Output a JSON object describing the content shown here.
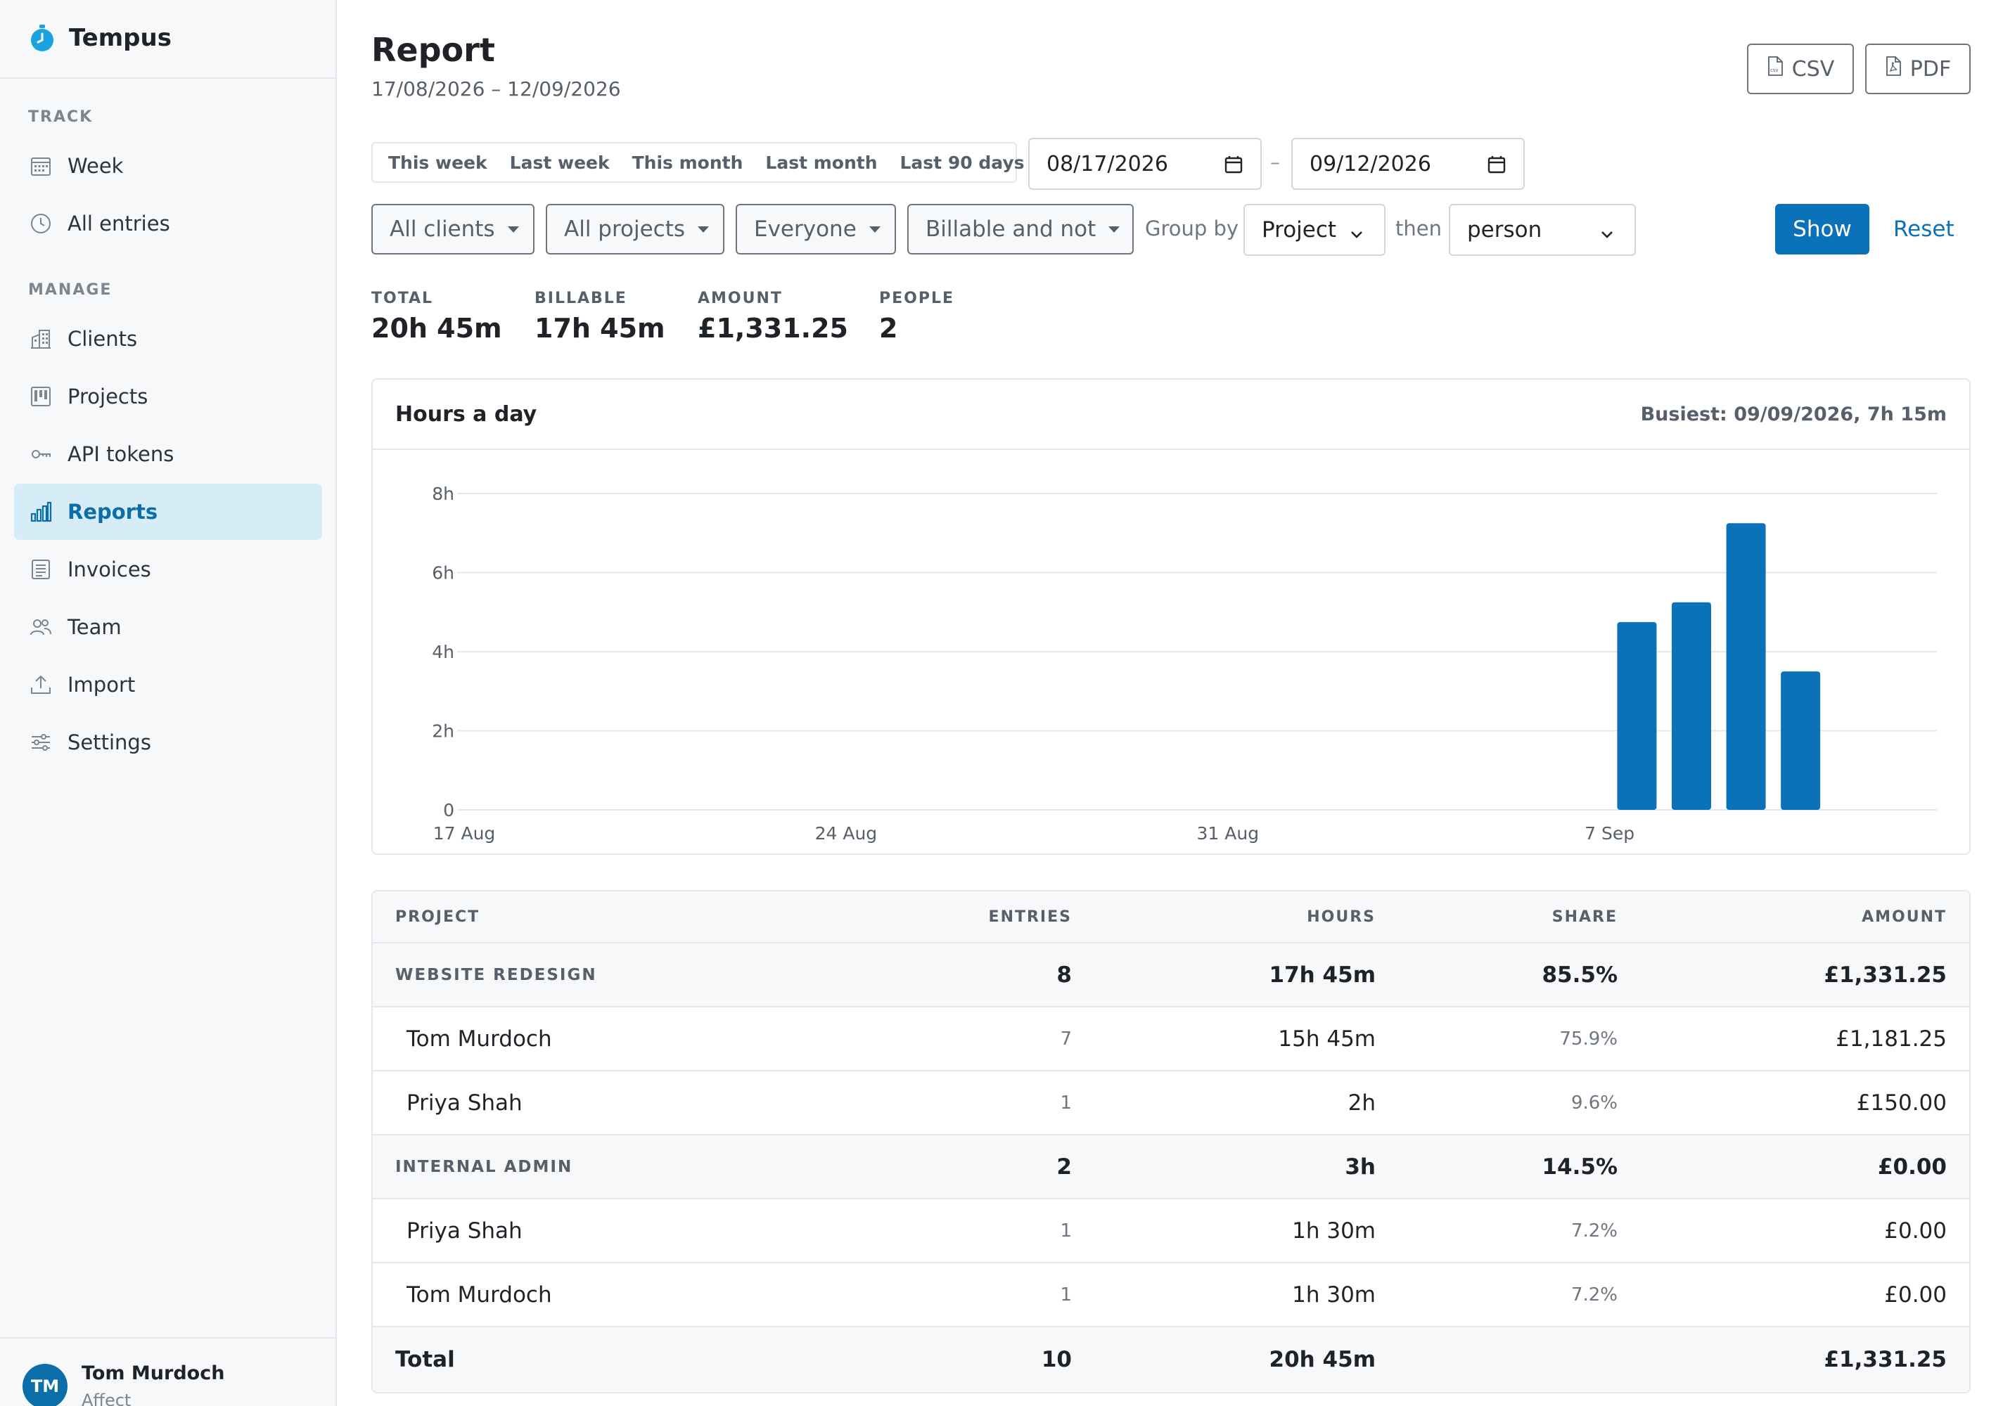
{
  "app": {
    "name": "Tempus"
  },
  "sidebar": {
    "track_heading": "TRACK",
    "manage_heading": "MANAGE",
    "items": [
      {
        "label": "Week",
        "icon": "calendar-week-icon"
      },
      {
        "label": "All entries",
        "icon": "clock-icon"
      },
      {
        "label": "Clients",
        "icon": "building-icon"
      },
      {
        "label": "Projects",
        "icon": "kanban-icon"
      },
      {
        "label": "API tokens",
        "icon": "key-icon"
      },
      {
        "label": "Reports",
        "icon": "bar-chart-icon",
        "active": true
      },
      {
        "label": "Invoices",
        "icon": "receipt-icon"
      },
      {
        "label": "Team",
        "icon": "people-icon"
      },
      {
        "label": "Import",
        "icon": "upload-icon"
      },
      {
        "label": "Settings",
        "icon": "sliders-icon"
      }
    ],
    "user": {
      "initials": "TM",
      "name": "Tom Murdoch",
      "org": "Affect"
    }
  },
  "header": {
    "title": "Report",
    "range": "17/08/2026 – 12/09/2026",
    "csv_label": "CSV",
    "pdf_label": "PDF"
  },
  "filters": {
    "presets": [
      "This week",
      "Last week",
      "This month",
      "Last month",
      "Last 90 days"
    ],
    "from_date": "08/17/2026",
    "to_date": "09/12/2026",
    "date_separator": "–",
    "client": "All clients",
    "project": "All projects",
    "person": "Everyone",
    "billable": "Billable and not",
    "group_by_label": "Group by",
    "group_by": "Project",
    "then_label": "then",
    "then_by": "person",
    "show_label": "Show",
    "reset_label": "Reset"
  },
  "stats": {
    "total_label": "TOTAL",
    "total": "20h 45m",
    "billable_label": "BILLABLE",
    "billable": "17h 45m",
    "amount_label": "AMOUNT",
    "amount": "£1,331.25",
    "people_label": "PEOPLE",
    "people": "2"
  },
  "chart_card": {
    "title": "Hours a day",
    "note": "Busiest: 09/09/2026, 7h 15m"
  },
  "chart_data": {
    "type": "bar",
    "start_date": "2026-08-17",
    "days": 27,
    "values_hours": [
      4.75,
      5.25,
      7.25,
      3.5
    ],
    "value_dates": [
      "2026-09-07",
      "2026-09-08",
      "2026-09-09",
      "2026-09-10"
    ],
    "y_ticks": [
      0,
      2,
      4,
      6,
      8
    ],
    "y_tick_labels": [
      "0",
      "2h",
      "4h",
      "6h",
      "8h"
    ],
    "x_ticks": [
      0,
      7,
      14,
      21
    ],
    "x_tick_labels": [
      "17 Aug",
      "24 Aug",
      "31 Aug",
      "7 Sep"
    ],
    "ylim": [
      0,
      8
    ],
    "grid": true,
    "color": "#0b72b9"
  },
  "table": {
    "headers": {
      "name": "PROJECT",
      "entries": "ENTRIES",
      "hours": "HOURS",
      "share": "SHARE",
      "amount": "AMOUNT"
    },
    "groups": [
      {
        "name": "WEBSITE REDESIGN",
        "entries": "8",
        "hours": "17h 45m",
        "share": "85.5%",
        "amount": "£1,331.25",
        "rows": [
          {
            "name": "Tom Murdoch",
            "entries": "7",
            "hours": "15h 45m",
            "share": "75.9%",
            "amount": "£1,181.25"
          },
          {
            "name": "Priya Shah",
            "entries": "1",
            "hours": "2h",
            "share": "9.6%",
            "amount": "£150.00"
          }
        ]
      },
      {
        "name": "INTERNAL ADMIN",
        "entries": "2",
        "hours": "3h",
        "share": "14.5%",
        "amount": "£0.00",
        "rows": [
          {
            "name": "Priya Shah",
            "entries": "1",
            "hours": "1h 30m",
            "share": "7.2%",
            "amount": "£0.00"
          },
          {
            "name": "Tom Murdoch",
            "entries": "1",
            "hours": "1h 30m",
            "share": "7.2%",
            "amount": "£0.00"
          }
        ]
      }
    ],
    "total": {
      "label": "Total",
      "entries": "10",
      "hours": "20h 45m",
      "amount": "£1,331.25"
    }
  }
}
